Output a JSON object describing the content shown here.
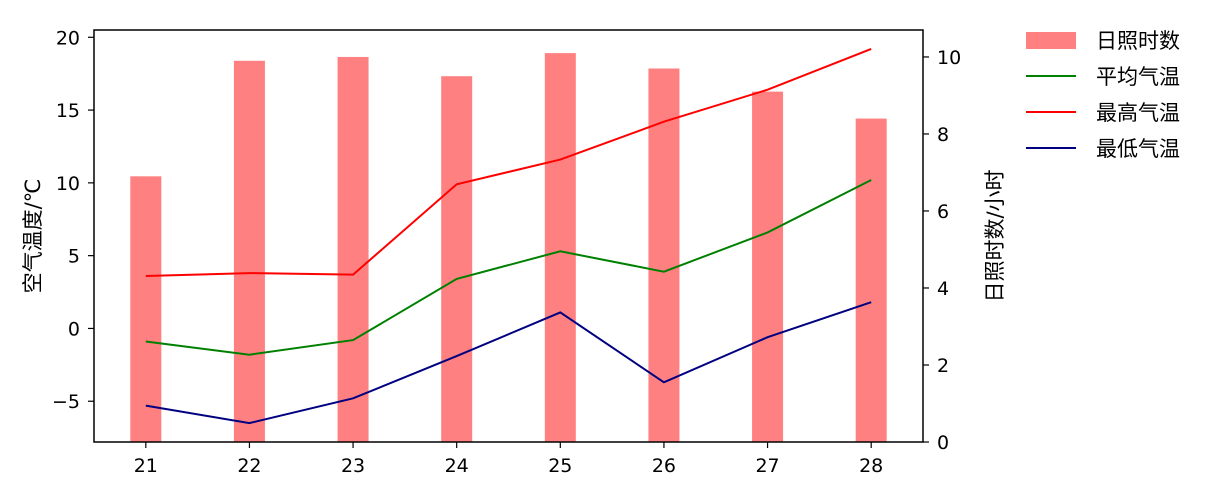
{
  "chart_data": {
    "type": "bar+line",
    "categories": [
      "21",
      "22",
      "23",
      "24",
      "25",
      "26",
      "27",
      "28"
    ],
    "bar_series": {
      "name": "日照时数",
      "axis": "right",
      "values": [
        6.9,
        9.9,
        10.0,
        9.5,
        10.1,
        9.7,
        9.1,
        8.4
      ],
      "color": "#ff8080"
    },
    "line_series": [
      {
        "name": "平均气温",
        "values": [
          -0.9,
          -1.8,
          -0.8,
          3.4,
          5.3,
          3.9,
          6.6,
          10.2
        ],
        "color": "#008000"
      },
      {
        "name": "最高气温",
        "values": [
          3.6,
          3.8,
          3.7,
          9.9,
          11.6,
          14.2,
          16.4,
          19.2
        ],
        "color": "#ff0000"
      },
      {
        "name": "最低气温",
        "values": [
          -5.3,
          -6.5,
          -4.8,
          -1.9,
          1.1,
          -3.7,
          -0.6,
          1.8
        ],
        "color": "#000080"
      }
    ],
    "xlabel": "",
    "ylabel_left": "空气温度/℃",
    "ylabel_right": "日照时数/小时",
    "ylim_left": [
      -7.8,
      20.5
    ],
    "ylim_right": [
      0,
      10.7
    ],
    "yticks_left": [
      -5,
      0,
      5,
      10,
      15,
      20
    ],
    "yticks_right": [
      0,
      2,
      4,
      6,
      8,
      10
    ],
    "grid": false,
    "legend_placement": "outside-top-right"
  }
}
